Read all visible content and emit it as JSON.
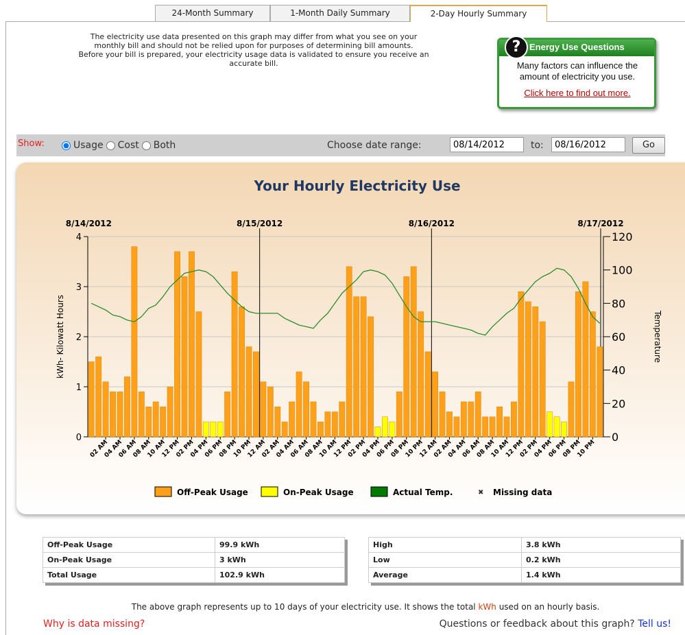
{
  "tabs": [
    "24-Month Summary",
    "1-Month Daily Summary",
    "2-Day Hourly Summary"
  ],
  "notice": [
    "The electricity use data presented on this graph may differ from what you see on your",
    "monthly bill and should not be relied upon for purposes of determining bill amounts.",
    "Before your bill is prepared, your electricity usage data is validated to ensure you receive an",
    "accurate bill."
  ],
  "callout": {
    "title": "Energy Use Questions",
    "text": "Many factors can influence the amount of electricity you use.",
    "link": "Click here to find out more."
  },
  "controls": {
    "show_label": "Show:",
    "options": [
      "Usage",
      "Cost",
      "Both"
    ],
    "selected": 0,
    "range_label": "Choose date range:",
    "from": "08/14/2012",
    "to_label": "to:",
    "to": "08/16/2012",
    "button": "Go"
  },
  "chart_data": {
    "type": "bar",
    "title": "Your Hourly Electricity Use",
    "y_label": "kWh- Kilowatt Hours",
    "y2_label": "Temperature",
    "date_markers": [
      "8/14/2012",
      "8/15/2012",
      "8/16/2012",
      "8/17/2012"
    ],
    "categories": [
      null,
      null,
      "02 AM",
      null,
      "04 AM",
      null,
      "06 AM",
      null,
      "08 AM",
      null,
      "10 AM",
      null,
      "12 PM",
      null,
      "02 PM",
      null,
      "04 PM",
      null,
      "06 PM",
      null,
      "08 PM",
      null,
      "10 PM",
      null,
      "12 AM",
      null,
      "02 AM",
      null,
      "04 AM",
      null,
      "06 AM",
      null,
      "08 AM",
      null,
      "10 AM",
      null,
      "12 PM",
      null,
      "02 PM",
      null,
      "04 PM",
      null,
      "06 PM",
      null,
      "08 PM",
      null,
      "10 PM",
      null,
      "12 AM",
      null,
      "02 AM",
      null,
      "04 AM",
      null,
      "06 AM",
      null,
      "08 AM",
      null,
      "10 AM",
      null,
      "12 PM",
      null,
      "02 PM",
      null,
      "04 PM",
      null,
      "06 PM",
      null,
      "08 PM",
      null,
      "10 PM",
      null
    ],
    "series": [
      {
        "name": "Off-Peak Usage",
        "color": "#ffa01a",
        "values": [
          1.5,
          1.6,
          1.1,
          0.9,
          0.9,
          1.2,
          3.8,
          0.9,
          0.6,
          0.7,
          0.6,
          1.0,
          3.7,
          3.2,
          3.7,
          2.5,
          null,
          null,
          null,
          0.9,
          3.3,
          2.6,
          1.8,
          1.7,
          1.1,
          1.0,
          0.6,
          0.3,
          0.7,
          1.3,
          1.1,
          0.7,
          0.3,
          0.5,
          0.5,
          0.7,
          3.4,
          2.8,
          2.8,
          2.4,
          null,
          null,
          null,
          0.9,
          3.2,
          3.4,
          2.5,
          1.7,
          1.3,
          0.9,
          0.5,
          0.4,
          0.7,
          0.7,
          0.9,
          0.4,
          0.4,
          0.6,
          0.4,
          0.7,
          2.9,
          2.7,
          2.6,
          2.3,
          null,
          null,
          null,
          1.1,
          2.9,
          3.1,
          2.5,
          1.8
        ]
      },
      {
        "name": "On-Peak Usage",
        "color": "#ffff00",
        "values": [
          null,
          null,
          null,
          null,
          null,
          null,
          null,
          null,
          null,
          null,
          null,
          null,
          null,
          null,
          null,
          null,
          0.3,
          0.3,
          0.3,
          null,
          null,
          null,
          null,
          null,
          null,
          null,
          null,
          null,
          null,
          null,
          null,
          null,
          null,
          null,
          null,
          null,
          null,
          null,
          null,
          null,
          0.2,
          0.4,
          0.3,
          null,
          null,
          null,
          null,
          null,
          null,
          null,
          null,
          null,
          null,
          null,
          null,
          null,
          null,
          null,
          null,
          null,
          null,
          null,
          null,
          null,
          0.5,
          0.4,
          0.3,
          null,
          null,
          null,
          null,
          null
        ]
      },
      {
        "name": "Actual Temp.",
        "color": "#2e8b2e",
        "axis": "y2",
        "values": [
          80,
          78,
          76,
          73,
          72,
          70,
          69,
          72,
          77,
          79,
          84,
          90,
          94,
          98,
          99,
          100,
          99,
          96,
          91,
          86,
          82,
          78,
          75,
          74,
          74,
          74,
          74,
          71,
          69,
          67,
          66,
          65,
          70,
          74,
          80,
          86,
          90,
          94,
          99,
          100,
          99,
          97,
          92,
          85,
          78,
          72,
          69,
          69,
          69,
          68,
          67,
          66,
          65,
          64,
          62,
          61,
          66,
          70,
          74,
          77,
          83,
          88,
          93,
          96,
          98,
          101,
          100,
          96,
          89,
          80,
          72,
          68
        ]
      }
    ],
    "missing_label": "Missing data",
    "ylim": [
      0,
      4
    ],
    "yticks": [
      0,
      1,
      2,
      3,
      4
    ],
    "y2lim": [
      0,
      120
    ],
    "y2ticks": [
      0,
      20,
      40,
      60,
      80,
      100,
      120
    ],
    "grid": true
  },
  "summary_tables": [
    [
      [
        "Off-Peak Usage",
        "99.9 kWh"
      ],
      [
        "On-Peak Usage",
        "3 kWh"
      ],
      [
        "Total Usage",
        "102.9 kWh"
      ]
    ],
    [
      [
        "High",
        "3.8 kWh"
      ],
      [
        "Low",
        "0.2 kWh"
      ],
      [
        "Average",
        "1.4 kWh"
      ]
    ]
  ],
  "footer": {
    "note": [
      "The above graph represents up to 10 days of your electricity use. It shows the total ",
      "kWh",
      " used on an hourly basis."
    ],
    "missing_link": "Why is data missing?",
    "feedback": "Questions or feedback about this graph? ",
    "feedback_link": "Tell us!"
  }
}
